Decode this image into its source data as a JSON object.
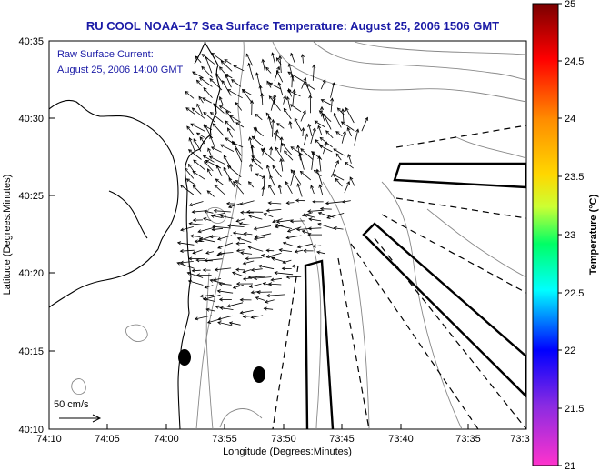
{
  "header": {
    "title": "RU COOL  NOAA–17  Sea Surface Temperature:  August 25, 2006 1506 GMT"
  },
  "annotation": {
    "line1": "Raw Surface Current:",
    "line2": "August 25, 2006 14:00 GMT",
    "scale_label": "50 cm/s"
  },
  "axes": {
    "xlabel": "Longitude (Degrees:Minutes)",
    "ylabel": "Latitude (Degrees:Minutes)",
    "xticks": [
      "74:10",
      "74:05",
      "74:00",
      "73:55",
      "73:50",
      "73:45",
      "73:40",
      "73:35",
      "73:3"
    ],
    "yticks": [
      "40:35",
      "40:30",
      "40:25",
      "40:20",
      "40:15",
      "40:10"
    ]
  },
  "colorbar": {
    "title": "Temperature (°C)",
    "labels": [
      "25",
      "24.5",
      "24",
      "23.5",
      "23",
      "22.5",
      "22",
      "21.5",
      "21"
    ],
    "colors": [
      "#8b0000",
      "#ff0000",
      "#ff8c00",
      "#ffff00",
      "#00ff00",
      "#00ffff",
      "#0000ff",
      "#8a2be2",
      "#ff00ff"
    ]
  },
  "map": {
    "colors": {
      "water": "#ffffff",
      "coast": "#000000",
      "bathymetry": "#888888",
      "vectors": "#000000"
    }
  }
}
